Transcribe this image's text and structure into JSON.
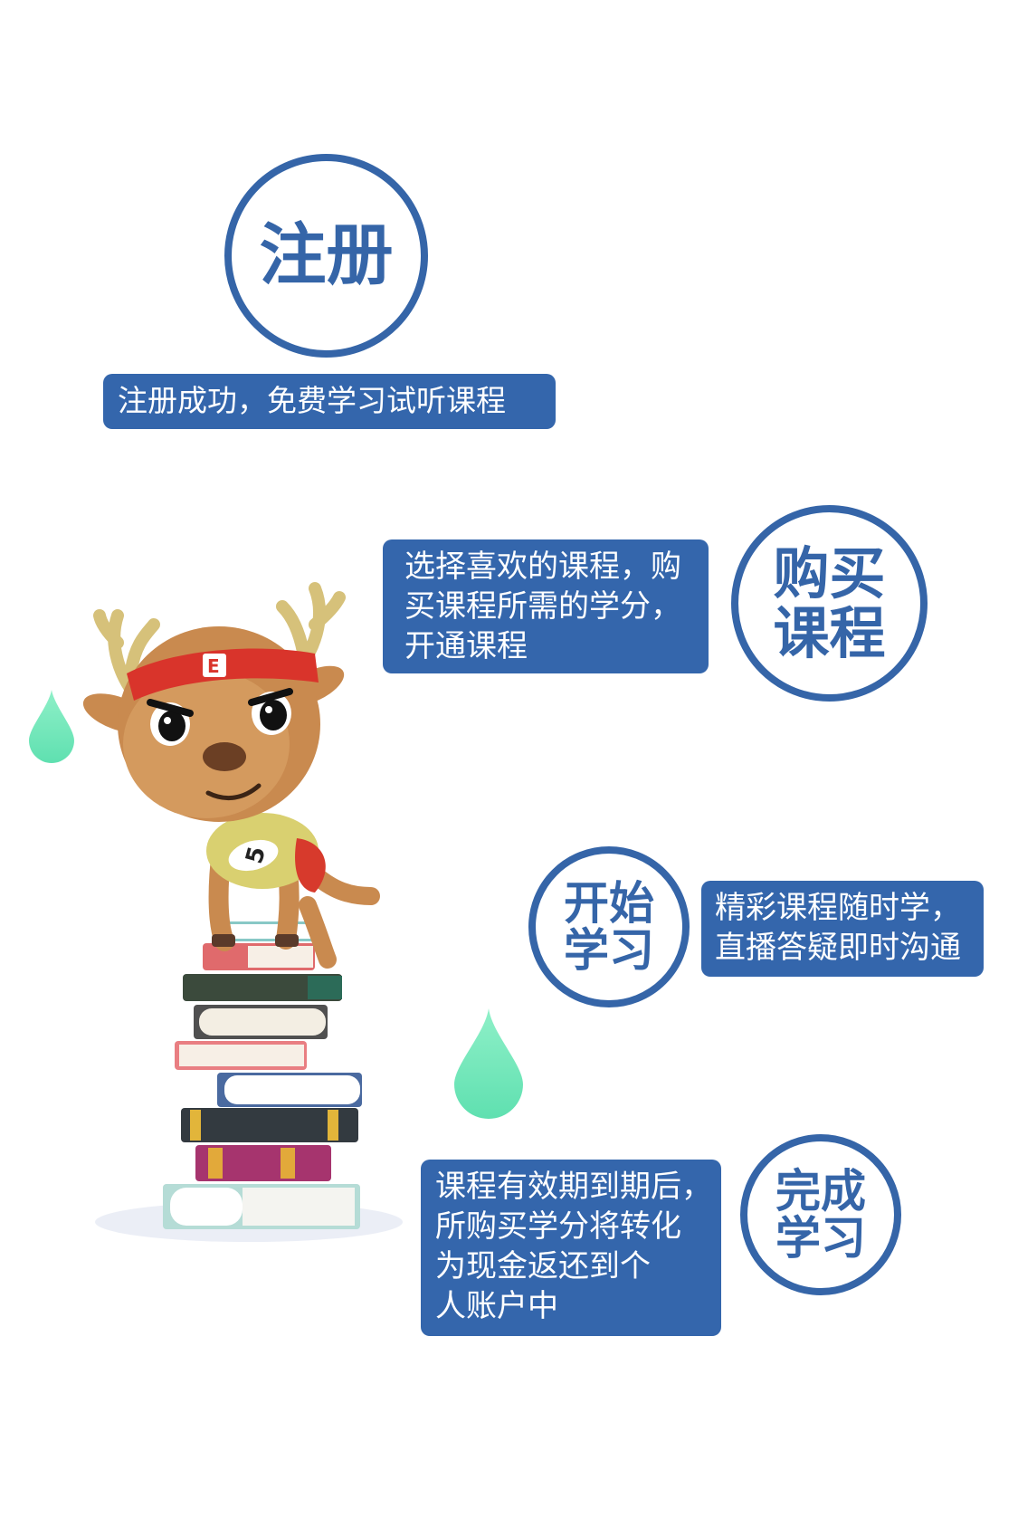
{
  "steps": [
    {
      "title_lines": [
        "注册"
      ],
      "desc_lines": [
        "注册成功，免费学习试听课程"
      ]
    },
    {
      "title_lines": [
        "购买",
        "课程"
      ],
      "desc_lines": [
        "选择喜欢的课程，购",
        "买课程所需的学分，",
        "开通课程"
      ]
    },
    {
      "title_lines": [
        "开始",
        "学习"
      ],
      "desc_lines": [
        "精彩课程随时学，",
        "直播答疑即时沟通"
      ]
    },
    {
      "title_lines": [
        "完成",
        "学习"
      ],
      "desc_lines": [
        "课程有效期到期后，",
        "所购买学分将转化",
        "为现金返还到个",
        "人账户中"
      ]
    }
  ],
  "mascot": {
    "headband_logo": "E",
    "bib_number": "5"
  },
  "colors": {
    "primary_blue": "#3466ac",
    "circle_border": "#3565a8",
    "drop_green": "#6ee6b8"
  }
}
